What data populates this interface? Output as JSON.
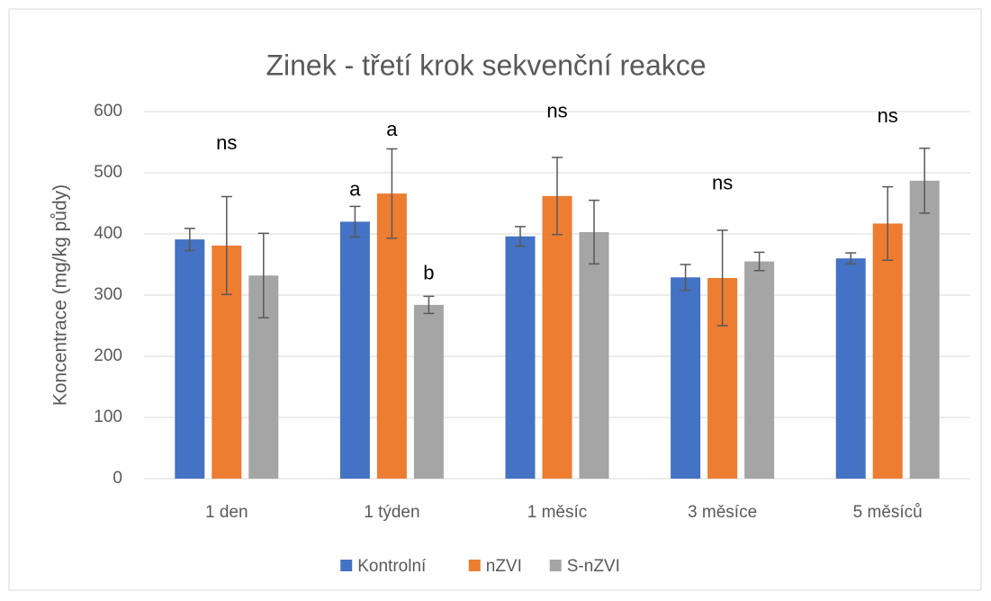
{
  "chart_data": {
    "type": "bar",
    "title": "Zinek - třetí krok sekvenční reakce",
    "y_label": "Koncentrace (mg/kg půdy)",
    "categories": [
      "1 den",
      "1 týden",
      "1 měsíc",
      "3 měsíce",
      "5 měsíců"
    ],
    "series": [
      {
        "name": "Kontrolní",
        "color": "#4472c4",
        "values": [
          391,
          420,
          396,
          329,
          360
        ],
        "errors": [
          18,
          25,
          16,
          21,
          9
        ]
      },
      {
        "name": "nZVI",
        "color": "#ed7d31",
        "values": [
          381,
          466,
          462,
          328,
          417
        ],
        "errors": [
          80,
          73,
          63,
          78,
          60
        ]
      },
      {
        "name": "S-nZVI",
        "color": "#a5a5a5",
        "values": [
          332,
          284,
          403,
          355,
          487
        ],
        "errors": [
          69,
          14,
          52,
          15,
          53
        ]
      }
    ],
    "annotations": [
      {
        "text": "ns",
        "x": "1 den",
        "y": 547
      },
      {
        "text": "a",
        "x": "1 týden",
        "series": "Kontrolní",
        "y": 471
      },
      {
        "text": "a",
        "x": "1 týden",
        "series": "nZVI",
        "y": 569
      },
      {
        "text": "b",
        "x": "1 týden",
        "series": "S-nZVI",
        "y": 334
      },
      {
        "text": "ns",
        "x": "1 měsíc",
        "y": 599
      },
      {
        "text": "ns",
        "x": "3 měsíce",
        "y": 481
      },
      {
        "text": "ns",
        "x": "5 měsíců",
        "y": 591
      }
    ],
    "ylim": [
      0,
      600
    ],
    "yticks": [
      0,
      100,
      200,
      300,
      400,
      500,
      600
    ],
    "grid": true,
    "legend": "bottom"
  }
}
